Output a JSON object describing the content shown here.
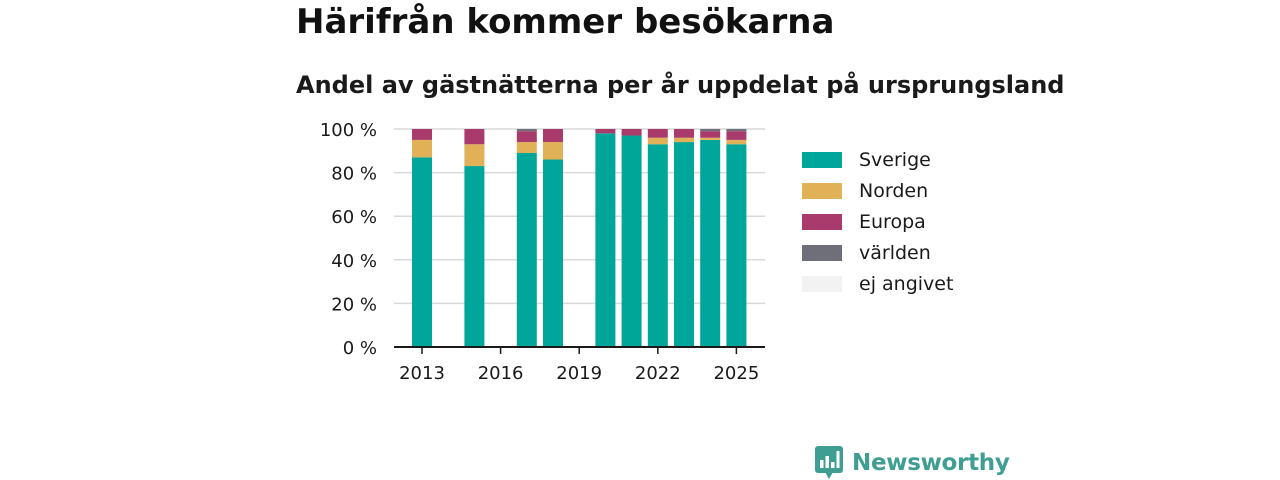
{
  "header": {
    "title": "Härifrån kommer besökarna",
    "subtitle": "Andel av gästnätterna per år uppdelat på ursprungsland"
  },
  "chart_data": {
    "type": "bar",
    "stacked": true,
    "categories": [
      "2013",
      "2014",
      "2015",
      "2016",
      "2017",
      "2018",
      "2019",
      "2020",
      "2021",
      "2022",
      "2023",
      "2024",
      "2025"
    ],
    "series": [
      {
        "name": "Sverige",
        "color": "#00a69a",
        "values": [
          87,
          null,
          83,
          null,
          89,
          86,
          null,
          98,
          97,
          93,
          94,
          95,
          93
        ]
      },
      {
        "name": "Norden",
        "color": "#e0b157",
        "values": [
          8,
          null,
          10,
          null,
          5,
          8,
          null,
          0,
          0,
          3,
          2,
          1,
          2
        ]
      },
      {
        "name": "Europa",
        "color": "#a83b6b",
        "values": [
          5,
          null,
          7,
          null,
          5,
          6,
          null,
          2,
          3,
          4,
          4,
          3,
          4
        ]
      },
      {
        "name": "världen",
        "color": "#6f6f79",
        "values": [
          0,
          null,
          0,
          null,
          1,
          0,
          null,
          0,
          0,
          0,
          0,
          1,
          1
        ]
      },
      {
        "name": "ej angivet",
        "color": "#f2f2f2",
        "values": [
          0,
          null,
          0,
          null,
          0,
          0,
          null,
          0,
          0,
          0,
          0,
          0,
          0
        ]
      }
    ],
    "x_tick_labels": [
      "2013",
      "2016",
      "2019",
      "2022",
      "2025"
    ],
    "y_ticks": [
      0,
      20,
      40,
      60,
      80,
      100
    ],
    "y_tick_labels": [
      "0 %",
      "20 %",
      "40 %",
      "60 %",
      "80 %",
      "100 %"
    ],
    "ylim": [
      0,
      100
    ],
    "grid": true,
    "legend_position": "right"
  },
  "branding": {
    "name": "Newsworthy",
    "logo_icon": "newsworthy-logo-icon",
    "color": "#3e9e93"
  }
}
